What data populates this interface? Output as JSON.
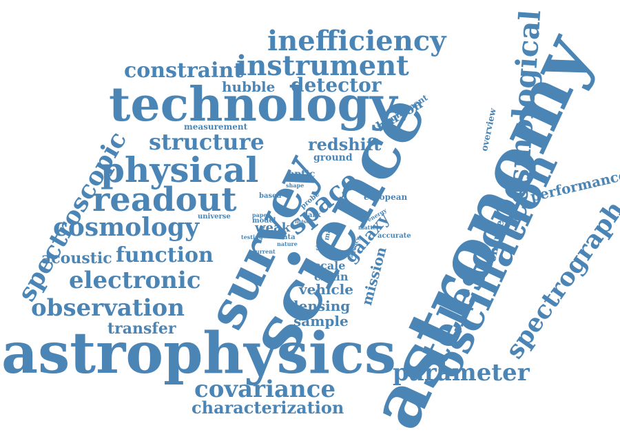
{
  "style": {
    "word_color": "#4a85b5",
    "background": "#ffffff"
  },
  "words": {
    "astrophysics": "astrophysics",
    "astronomy": "astronomy",
    "science": "science",
    "survey": "survey",
    "technology": "technology",
    "telescope": "telescope",
    "oscillation": "oscillation",
    "cosmological": "cosmological",
    "spectrograph": "spectrograph",
    "inefficiency": "inefficiency",
    "instrument": "instrument",
    "constraint": "constraint",
    "detector": "detector",
    "hubble": "hubble",
    "physical": "physical",
    "readout": "readout",
    "structure": "structure",
    "measurement": "measurement",
    "cosmology": "cosmology",
    "spectroscopic": "spectroscopic",
    "acoustic": "acoustic",
    "function": "function",
    "electronic": "electronic",
    "observation": "observation",
    "transfer": "transfer",
    "covariance": "covariance",
    "characterization": "characterization",
    "parameter": "parameter",
    "performance": "performance",
    "overview": "overview",
    "requirement": "requirement",
    "baryon": "baryon",
    "redshift": "redshift",
    "ground": "ground",
    "optic": "optic",
    "space": "space",
    "galaxy": "galaxy",
    "mission": "mission",
    "charge": "charge",
    "scale": "scale",
    "chain": "chain",
    "vehicle": "vehicle",
    "lensing": "lensing",
    "sample": "sample",
    "weak": "weak",
    "european": "european",
    "accurate": "accurate",
    "probe": "probe",
    "dark": "dark",
    "based": "based",
    "universe": "universe",
    "shape": "shape",
    "model": "model",
    "paper": "paper",
    "testing": "testing",
    "data": "data",
    "nature": "nature",
    "current": "current",
    "mas": "mas",
    "matter": "matter",
    "energy": "energy",
    "agency": "agency",
    "noise": "noise",
    "class": "class"
  }
}
